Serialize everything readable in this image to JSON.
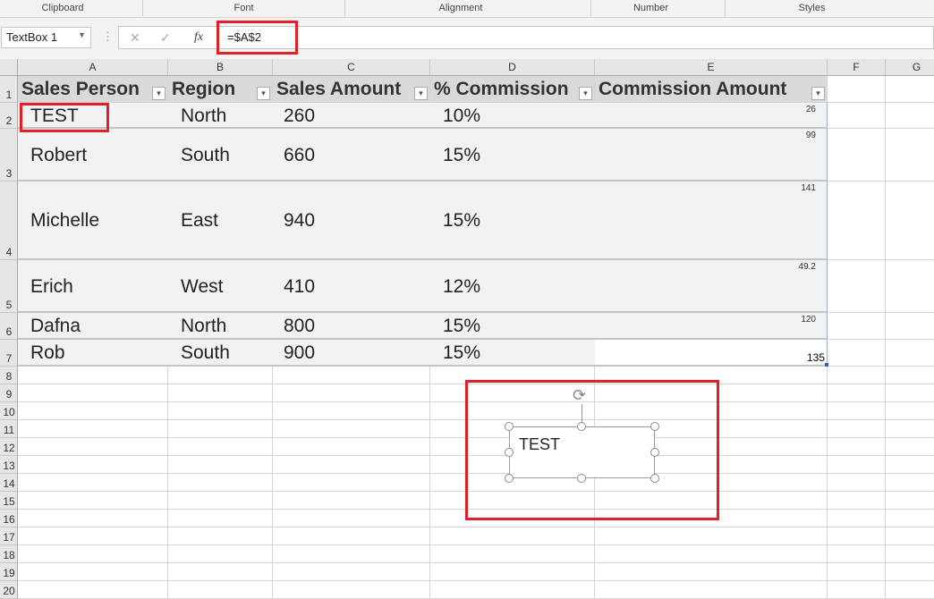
{
  "ribbon": {
    "groups": [
      "Clipboard",
      "Font",
      "Alignment",
      "Number",
      "Styles"
    ]
  },
  "formula_bar": {
    "name_box": "TextBox 1",
    "formula": "=$A$2",
    "cancel_icon": "x-icon",
    "enter_icon": "check-icon",
    "fx_label": "fx"
  },
  "columns": [
    "A",
    "B",
    "C",
    "D",
    "E",
    "F",
    "G"
  ],
  "rows": [
    "1",
    "2",
    "3",
    "4",
    "5",
    "6",
    "7",
    "8",
    "9",
    "10",
    "11",
    "12",
    "13",
    "14",
    "15",
    "16",
    "17",
    "18",
    "19",
    "20"
  ],
  "table": {
    "headers": [
      "Sales Person",
      "Region",
      "Sales Amount",
      "% Commission",
      "Commission Amount"
    ],
    "rows": [
      [
        "TEST",
        "North",
        "260",
        "10%",
        "26"
      ],
      [
        "Robert",
        "South",
        "660",
        "15%",
        "99"
      ],
      [
        "Michelle",
        "East",
        "940",
        "15%",
        "141"
      ],
      [
        "Erich",
        "West",
        "410",
        "12%",
        "49.2"
      ],
      [
        "Dafna",
        "North",
        "800",
        "15%",
        "120"
      ],
      [
        "Rob",
        "South",
        "900",
        "15%",
        "135"
      ]
    ]
  },
  "textbox": {
    "text": "TEST"
  },
  "colors": {
    "highlight": "#e3202a",
    "header_fill": "#dadada",
    "band_fill": "#f2f2f2"
  }
}
